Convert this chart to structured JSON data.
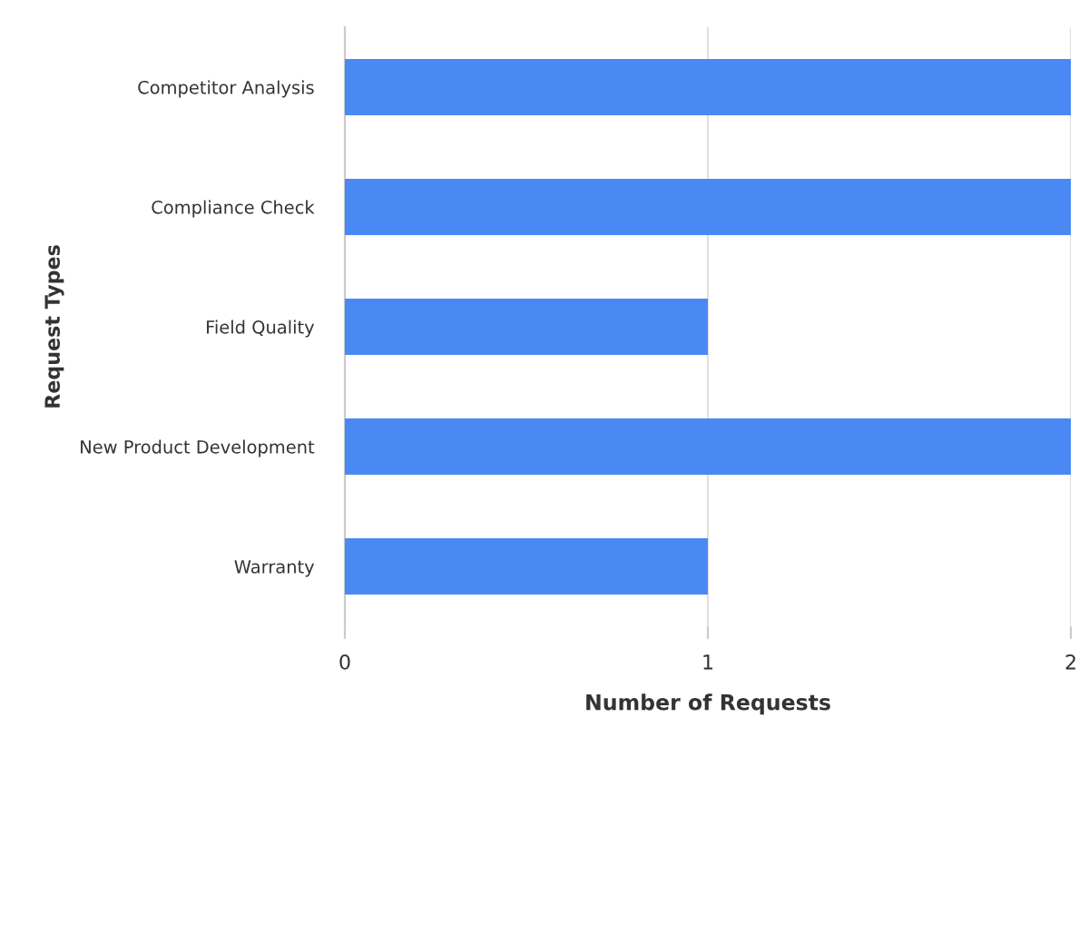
{
  "chart_data": {
    "type": "bar",
    "orientation": "horizontal",
    "xlabel": "Number of Requests",
    "ylabel": "Request Types",
    "categories": [
      "Competitor Analysis",
      "Compliance Check",
      "Field Quality",
      "New Product Development",
      "Warranty"
    ],
    "values": [
      2,
      2,
      1,
      2,
      1
    ],
    "color": "#4a89f3",
    "xlim": [
      0,
      2
    ],
    "xticks": [
      0,
      1,
      2
    ],
    "grid": "x",
    "legend": false
  }
}
